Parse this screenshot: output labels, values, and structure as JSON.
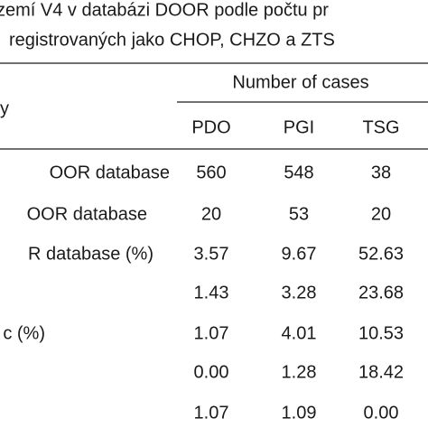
{
  "header": {
    "title_lines": [
      "zemí V4 v databázi DOOR podle počtu pr",
      "registrovaných jako CHOP, CHZO a ZTS"
    ]
  },
  "table": {
    "row_header": "y",
    "group_header": "Number of cases",
    "columns": [
      "PDO",
      "PGI",
      "TSG"
    ],
    "rows": [
      {
        "label": "OOR database",
        "cells": [
          "560",
          "548",
          "38"
        ]
      },
      {
        "label": "OOR database",
        "cells": [
          "20",
          "53",
          "20"
        ]
      },
      {
        "label": "R database (%)",
        "cells": [
          "3.57",
          "9.67",
          "52.63"
        ]
      },
      {
        "cells": [
          "1.43",
          "3.28",
          "23.68"
        ]
      },
      {
        "label": "c (%)",
        "cells": [
          "1.07",
          "4.01",
          "10.53"
        ]
      },
      {
        "cells": [
          "0.00",
          "1.28",
          "18.42"
        ]
      },
      {
        "cells": [
          "1.07",
          "1.09",
          "0.00"
        ]
      }
    ]
  }
}
